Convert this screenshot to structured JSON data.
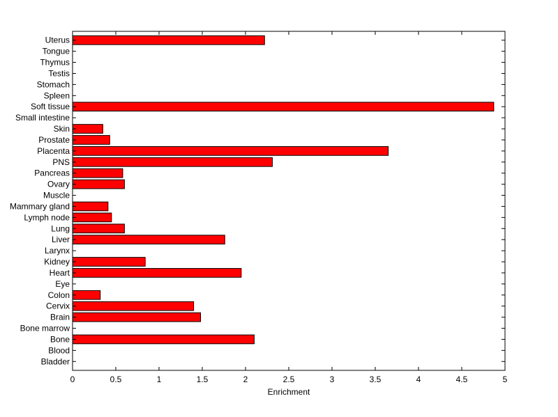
{
  "chart_data": {
    "type": "bar",
    "orientation": "horizontal",
    "title": "",
    "xlabel": "Enrichment",
    "ylabel": "",
    "xlim": [
      0,
      5
    ],
    "xticks": [
      "0",
      "0.5",
      "1",
      "1.5",
      "2",
      "2.5",
      "3",
      "3.5",
      "4",
      "4.5",
      "5"
    ],
    "grid": false,
    "bar_color": "#ff0000",
    "categories": [
      "Uterus",
      "Tongue",
      "Thymus",
      "Testis",
      "Stomach",
      "Spleen",
      "Soft tissue",
      "Small intestine",
      "Skin",
      "Prostate",
      "Placenta",
      "PNS",
      "Pancreas",
      "Ovary",
      "Muscle",
      "Mammary gland",
      "Lymph node",
      "Lung",
      "Liver",
      "Larynx",
      "Kidney",
      "Heart",
      "Eye",
      "Colon",
      "Cervix",
      "Brain",
      "Bone marrow",
      "Bone",
      "Blood",
      "Bladder"
    ],
    "values": [
      2.22,
      0,
      0,
      0,
      0,
      0,
      4.87,
      0,
      0.35,
      0.43,
      3.65,
      2.31,
      0.58,
      0.6,
      0,
      0.41,
      0.45,
      0.6,
      1.76,
      0,
      0.84,
      1.95,
      0,
      0.32,
      1.4,
      1.48,
      0,
      2.1,
      0,
      0
    ]
  }
}
